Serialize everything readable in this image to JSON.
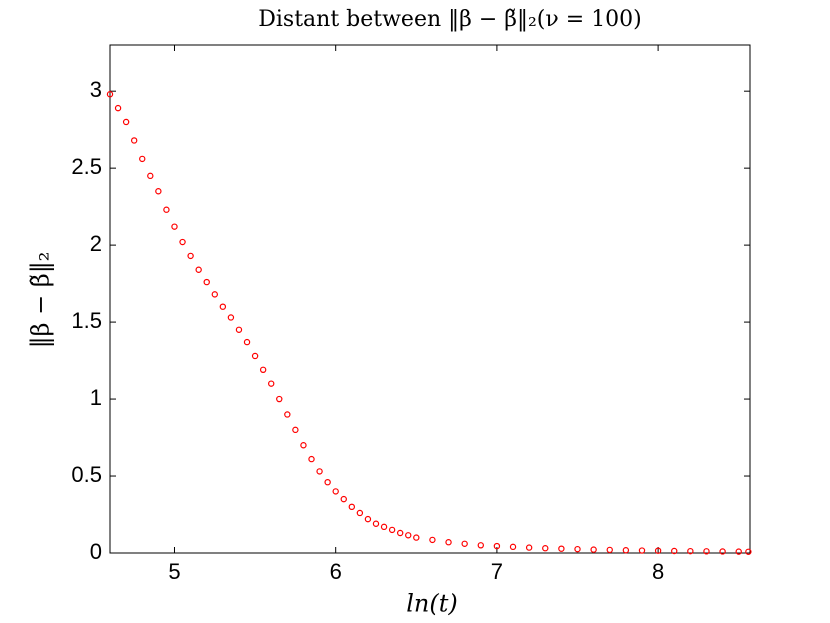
{
  "chart_data": {
    "type": "scatter",
    "title": "Distant between ‖β − β̃‖₂(ν = 100)",
    "x_label": "ln(t)",
    "y_label": "‖β − β̃‖₂",
    "marker": "circle",
    "color": "#ff0000",
    "xlim": [
      4.6,
      8.57
    ],
    "ylim": [
      0,
      3.3
    ],
    "xticks": [
      5,
      6,
      7,
      8
    ],
    "yticks": [
      0,
      0.5,
      1,
      1.5,
      2,
      2.5,
      3
    ],
    "grid": false,
    "x": [
      4.6,
      4.65,
      4.7,
      4.75,
      4.8,
      4.85,
      4.9,
      4.95,
      5.0,
      5.05,
      5.1,
      5.15,
      5.2,
      5.25,
      5.3,
      5.35,
      5.4,
      5.45,
      5.5,
      5.55,
      5.6,
      5.65,
      5.7,
      5.75,
      5.8,
      5.85,
      5.9,
      5.95,
      6.0,
      6.05,
      6.1,
      6.15,
      6.2,
      6.25,
      6.3,
      6.35,
      6.4,
      6.45,
      6.5,
      6.6,
      6.7,
      6.8,
      6.9,
      7.0,
      7.1,
      7.2,
      7.3,
      7.4,
      7.5,
      7.6,
      7.7,
      7.8,
      7.9,
      8.0,
      8.1,
      8.2,
      8.3,
      8.4,
      8.5,
      8.56
    ],
    "values": [
      2.98,
      2.89,
      2.8,
      2.68,
      2.56,
      2.45,
      2.35,
      2.23,
      2.12,
      2.02,
      1.93,
      1.84,
      1.76,
      1.68,
      1.6,
      1.53,
      1.45,
      1.37,
      1.28,
      1.19,
      1.1,
      1.0,
      0.9,
      0.8,
      0.7,
      0.61,
      0.53,
      0.46,
      0.4,
      0.35,
      0.3,
      0.26,
      0.22,
      0.19,
      0.17,
      0.15,
      0.13,
      0.115,
      0.1,
      0.085,
      0.07,
      0.06,
      0.05,
      0.045,
      0.04,
      0.035,
      0.031,
      0.028,
      0.025,
      0.022,
      0.02,
      0.018,
      0.016,
      0.015,
      0.013,
      0.012,
      0.011,
      0.01,
      0.009,
      0.008
    ]
  }
}
